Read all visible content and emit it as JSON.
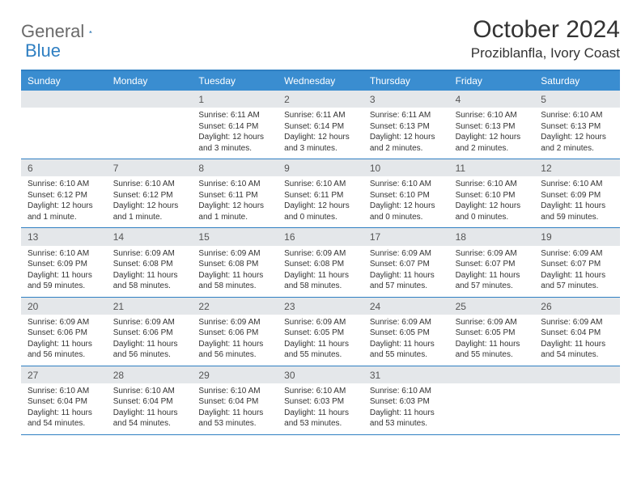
{
  "logo": {
    "general": "General",
    "blue": "Blue"
  },
  "title": "October 2024",
  "location": "Proziblanfla, Ivory Coast",
  "colors": {
    "header_bg": "#3a8dd0",
    "border": "#2f7fc2",
    "daynum_bg": "#e4e7ea",
    "text": "#333333",
    "logo_gray": "#6a6a6a",
    "logo_blue": "#2f7fc2",
    "bg": "#ffffff"
  },
  "fonts": {
    "title_size": 30,
    "location_size": 17,
    "header_size": 12,
    "cell_size": 10
  },
  "day_names": [
    "Sunday",
    "Monday",
    "Tuesday",
    "Wednesday",
    "Thursday",
    "Friday",
    "Saturday"
  ],
  "weeks": [
    [
      null,
      null,
      {
        "n": "1",
        "sr": "Sunrise: 6:11 AM",
        "ss": "Sunset: 6:14 PM",
        "dl": "Daylight: 12 hours and 3 minutes."
      },
      {
        "n": "2",
        "sr": "Sunrise: 6:11 AM",
        "ss": "Sunset: 6:14 PM",
        "dl": "Daylight: 12 hours and 3 minutes."
      },
      {
        "n": "3",
        "sr": "Sunrise: 6:11 AM",
        "ss": "Sunset: 6:13 PM",
        "dl": "Daylight: 12 hours and 2 minutes."
      },
      {
        "n": "4",
        "sr": "Sunrise: 6:10 AM",
        "ss": "Sunset: 6:13 PM",
        "dl": "Daylight: 12 hours and 2 minutes."
      },
      {
        "n": "5",
        "sr": "Sunrise: 6:10 AM",
        "ss": "Sunset: 6:13 PM",
        "dl": "Daylight: 12 hours and 2 minutes."
      }
    ],
    [
      {
        "n": "6",
        "sr": "Sunrise: 6:10 AM",
        "ss": "Sunset: 6:12 PM",
        "dl": "Daylight: 12 hours and 1 minute."
      },
      {
        "n": "7",
        "sr": "Sunrise: 6:10 AM",
        "ss": "Sunset: 6:12 PM",
        "dl": "Daylight: 12 hours and 1 minute."
      },
      {
        "n": "8",
        "sr": "Sunrise: 6:10 AM",
        "ss": "Sunset: 6:11 PM",
        "dl": "Daylight: 12 hours and 1 minute."
      },
      {
        "n": "9",
        "sr": "Sunrise: 6:10 AM",
        "ss": "Sunset: 6:11 PM",
        "dl": "Daylight: 12 hours and 0 minutes."
      },
      {
        "n": "10",
        "sr": "Sunrise: 6:10 AM",
        "ss": "Sunset: 6:10 PM",
        "dl": "Daylight: 12 hours and 0 minutes."
      },
      {
        "n": "11",
        "sr": "Sunrise: 6:10 AM",
        "ss": "Sunset: 6:10 PM",
        "dl": "Daylight: 12 hours and 0 minutes."
      },
      {
        "n": "12",
        "sr": "Sunrise: 6:10 AM",
        "ss": "Sunset: 6:09 PM",
        "dl": "Daylight: 11 hours and 59 minutes."
      }
    ],
    [
      {
        "n": "13",
        "sr": "Sunrise: 6:10 AM",
        "ss": "Sunset: 6:09 PM",
        "dl": "Daylight: 11 hours and 59 minutes."
      },
      {
        "n": "14",
        "sr": "Sunrise: 6:09 AM",
        "ss": "Sunset: 6:08 PM",
        "dl": "Daylight: 11 hours and 58 minutes."
      },
      {
        "n": "15",
        "sr": "Sunrise: 6:09 AM",
        "ss": "Sunset: 6:08 PM",
        "dl": "Daylight: 11 hours and 58 minutes."
      },
      {
        "n": "16",
        "sr": "Sunrise: 6:09 AM",
        "ss": "Sunset: 6:08 PM",
        "dl": "Daylight: 11 hours and 58 minutes."
      },
      {
        "n": "17",
        "sr": "Sunrise: 6:09 AM",
        "ss": "Sunset: 6:07 PM",
        "dl": "Daylight: 11 hours and 57 minutes."
      },
      {
        "n": "18",
        "sr": "Sunrise: 6:09 AM",
        "ss": "Sunset: 6:07 PM",
        "dl": "Daylight: 11 hours and 57 minutes."
      },
      {
        "n": "19",
        "sr": "Sunrise: 6:09 AM",
        "ss": "Sunset: 6:07 PM",
        "dl": "Daylight: 11 hours and 57 minutes."
      }
    ],
    [
      {
        "n": "20",
        "sr": "Sunrise: 6:09 AM",
        "ss": "Sunset: 6:06 PM",
        "dl": "Daylight: 11 hours and 56 minutes."
      },
      {
        "n": "21",
        "sr": "Sunrise: 6:09 AM",
        "ss": "Sunset: 6:06 PM",
        "dl": "Daylight: 11 hours and 56 minutes."
      },
      {
        "n": "22",
        "sr": "Sunrise: 6:09 AM",
        "ss": "Sunset: 6:06 PM",
        "dl": "Daylight: 11 hours and 56 minutes."
      },
      {
        "n": "23",
        "sr": "Sunrise: 6:09 AM",
        "ss": "Sunset: 6:05 PM",
        "dl": "Daylight: 11 hours and 55 minutes."
      },
      {
        "n": "24",
        "sr": "Sunrise: 6:09 AM",
        "ss": "Sunset: 6:05 PM",
        "dl": "Daylight: 11 hours and 55 minutes."
      },
      {
        "n": "25",
        "sr": "Sunrise: 6:09 AM",
        "ss": "Sunset: 6:05 PM",
        "dl": "Daylight: 11 hours and 55 minutes."
      },
      {
        "n": "26",
        "sr": "Sunrise: 6:09 AM",
        "ss": "Sunset: 6:04 PM",
        "dl": "Daylight: 11 hours and 54 minutes."
      }
    ],
    [
      {
        "n": "27",
        "sr": "Sunrise: 6:10 AM",
        "ss": "Sunset: 6:04 PM",
        "dl": "Daylight: 11 hours and 54 minutes."
      },
      {
        "n": "28",
        "sr": "Sunrise: 6:10 AM",
        "ss": "Sunset: 6:04 PM",
        "dl": "Daylight: 11 hours and 54 minutes."
      },
      {
        "n": "29",
        "sr": "Sunrise: 6:10 AM",
        "ss": "Sunset: 6:04 PM",
        "dl": "Daylight: 11 hours and 53 minutes."
      },
      {
        "n": "30",
        "sr": "Sunrise: 6:10 AM",
        "ss": "Sunset: 6:03 PM",
        "dl": "Daylight: 11 hours and 53 minutes."
      },
      {
        "n": "31",
        "sr": "Sunrise: 6:10 AM",
        "ss": "Sunset: 6:03 PM",
        "dl": "Daylight: 11 hours and 53 minutes."
      },
      null,
      null
    ]
  ]
}
